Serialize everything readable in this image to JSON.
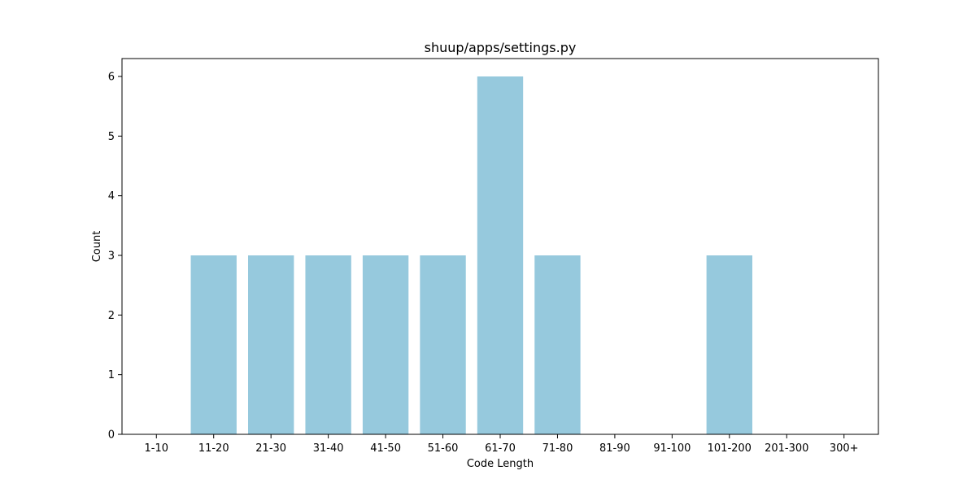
{
  "chart_data": {
    "type": "bar",
    "title": "shuup/apps/settings.py",
    "xlabel": "Code Length",
    "ylabel": "Count",
    "categories": [
      "1-10",
      "11-20",
      "21-30",
      "31-40",
      "41-50",
      "51-60",
      "61-70",
      "71-80",
      "81-90",
      "91-100",
      "101-200",
      "201-300",
      "300+"
    ],
    "values": [
      0,
      3,
      3,
      3,
      3,
      3,
      6,
      3,
      0,
      0,
      3,
      0,
      0
    ],
    "ylim": [
      0,
      6.3
    ],
    "yticks": [
      0,
      1,
      2,
      3,
      4,
      5,
      6
    ],
    "grid": false,
    "bar_color": "#96c9dd"
  }
}
